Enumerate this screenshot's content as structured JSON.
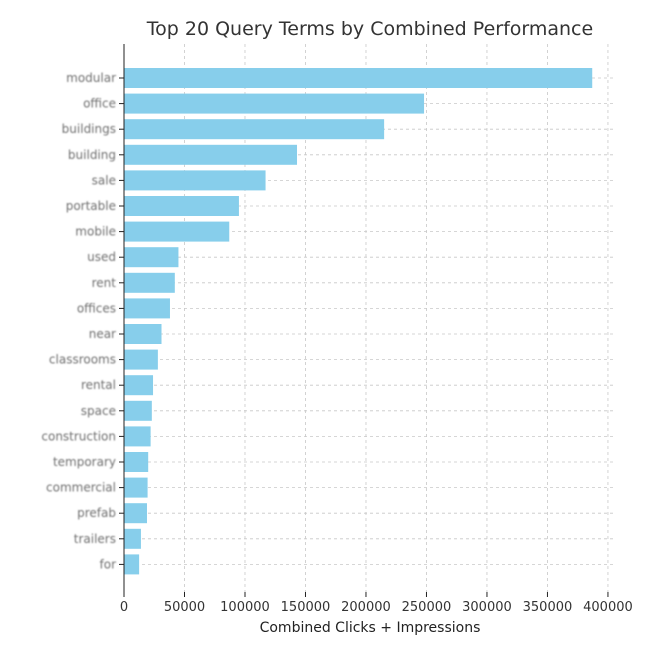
{
  "chart_data": {
    "type": "bar",
    "orientation": "horizontal",
    "title": "Top 20 Query Terms by Combined Performance",
    "xlabel": "Combined Clicks + Impressions",
    "ylabel": "",
    "xlim": [
      0,
      405000
    ],
    "xticks": [
      0,
      50000,
      100000,
      150000,
      200000,
      250000,
      300000,
      350000,
      400000
    ],
    "xtick_labels": [
      "0",
      "50000",
      "100000",
      "150000",
      "200000",
      "250000",
      "300000",
      "350000",
      "400000"
    ],
    "grid": true,
    "bar_color": "#87CEEB",
    "categories": [
      "modular",
      "office",
      "buildings",
      "building",
      "sale",
      "portable",
      "mobile",
      "used",
      "rent",
      "offices",
      "near",
      "classrooms",
      "rental",
      "space",
      "construction",
      "temporary",
      "commercial",
      "prefab",
      "trailers",
      "for"
    ],
    "values": [
      387000,
      248000,
      215000,
      143000,
      117000,
      95000,
      87000,
      45000,
      42000,
      38000,
      31000,
      28000,
      24000,
      23000,
      22000,
      20000,
      19500,
      19000,
      14000,
      12500
    ]
  }
}
